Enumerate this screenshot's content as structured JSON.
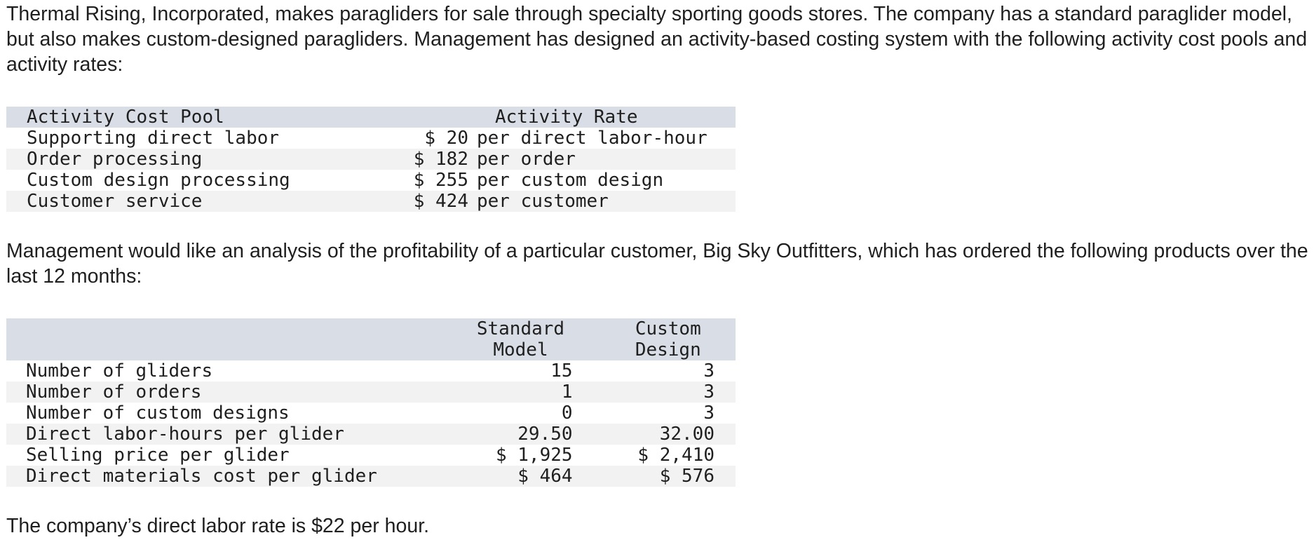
{
  "intro": "Thermal Rising, Incorporated, makes paragliders for sale through specialty sporting goods stores. The company has a standard paraglider model, but also makes custom-designed paragliders. Management has designed an activity-based costing system with the following activity cost pools and activity rates:",
  "activity_table": {
    "headers": {
      "pool": "Activity Cost Pool",
      "rate": "Activity Rate"
    },
    "rows": [
      {
        "pool": "Supporting direct labor",
        "amount": "$ 20",
        "unit": "per direct labor-hour"
      },
      {
        "pool": "Order processing",
        "amount": "$ 182",
        "unit": "per order"
      },
      {
        "pool": "Custom design processing",
        "amount": "$ 255",
        "unit": "per custom design"
      },
      {
        "pool": "Customer service",
        "amount": "$ 424",
        "unit": "per customer"
      }
    ]
  },
  "middle_text": "Management would like an analysis of the profitability of a particular customer, Big Sky Outfitters, which has ordered the following products over the last 12 months:",
  "product_table": {
    "headers": {
      "standard_line1": "Standard",
      "standard_line2": "Model",
      "custom_line1": "Custom",
      "custom_line2": "Design"
    },
    "rows": [
      {
        "label": "Number of gliders",
        "standard": "15",
        "custom": "3"
      },
      {
        "label": "Number of orders",
        "standard": "1",
        "custom": "3"
      },
      {
        "label": "Number of custom designs",
        "standard": "0",
        "custom": "3"
      },
      {
        "label": "Direct labor-hours per glider",
        "standard": "29.50",
        "custom": "32.00"
      },
      {
        "label": "Selling price per glider",
        "standard": "$ 1,925",
        "custom": "$ 2,410"
      },
      {
        "label": "Direct materials cost per glider",
        "standard": "$ 464",
        "custom": "$ 576"
      }
    ]
  },
  "footer": "The company’s direct labor rate is $22 per hour."
}
